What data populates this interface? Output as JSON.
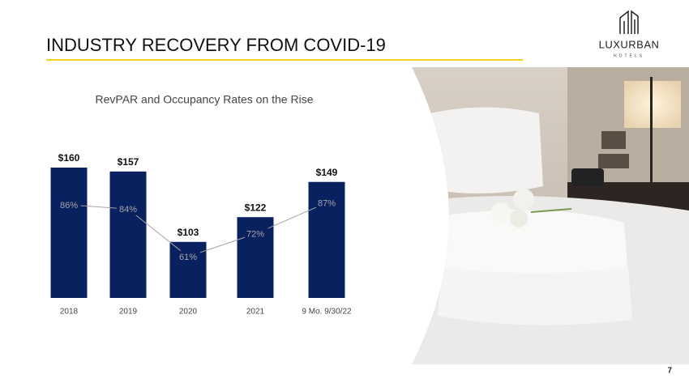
{
  "header": {
    "title": "INDUSTRY RECOVERY FROM COVID-19",
    "logo": "LUXURBAN",
    "logo_sub": "HOTELS"
  },
  "page_number": "7",
  "chart_data": {
    "type": "bar",
    "title": "RevPAR and Occupancy Rates on the Rise",
    "categories": [
      "2018",
      "2019",
      "2020",
      "2021",
      "9 Mo. 9/30/22"
    ],
    "ylim": [
      60,
      160
    ],
    "y2lim": [
      41,
      104
    ],
    "series": [
      {
        "name": "RevPAR",
        "color": "#0a2160",
        "values": [
          160,
          157,
          103,
          122,
          149
        ],
        "value_labels": [
          "$160",
          "$157",
          "$103",
          "$122",
          "$149"
        ]
      },
      {
        "name": "Occupancy",
        "color": "#a6a6a6",
        "axis": "y2",
        "values": [
          86,
          84,
          61,
          72,
          87
        ],
        "value_labels": [
          "86%",
          "84%",
          "61%",
          "72%",
          "87%"
        ]
      }
    ]
  }
}
